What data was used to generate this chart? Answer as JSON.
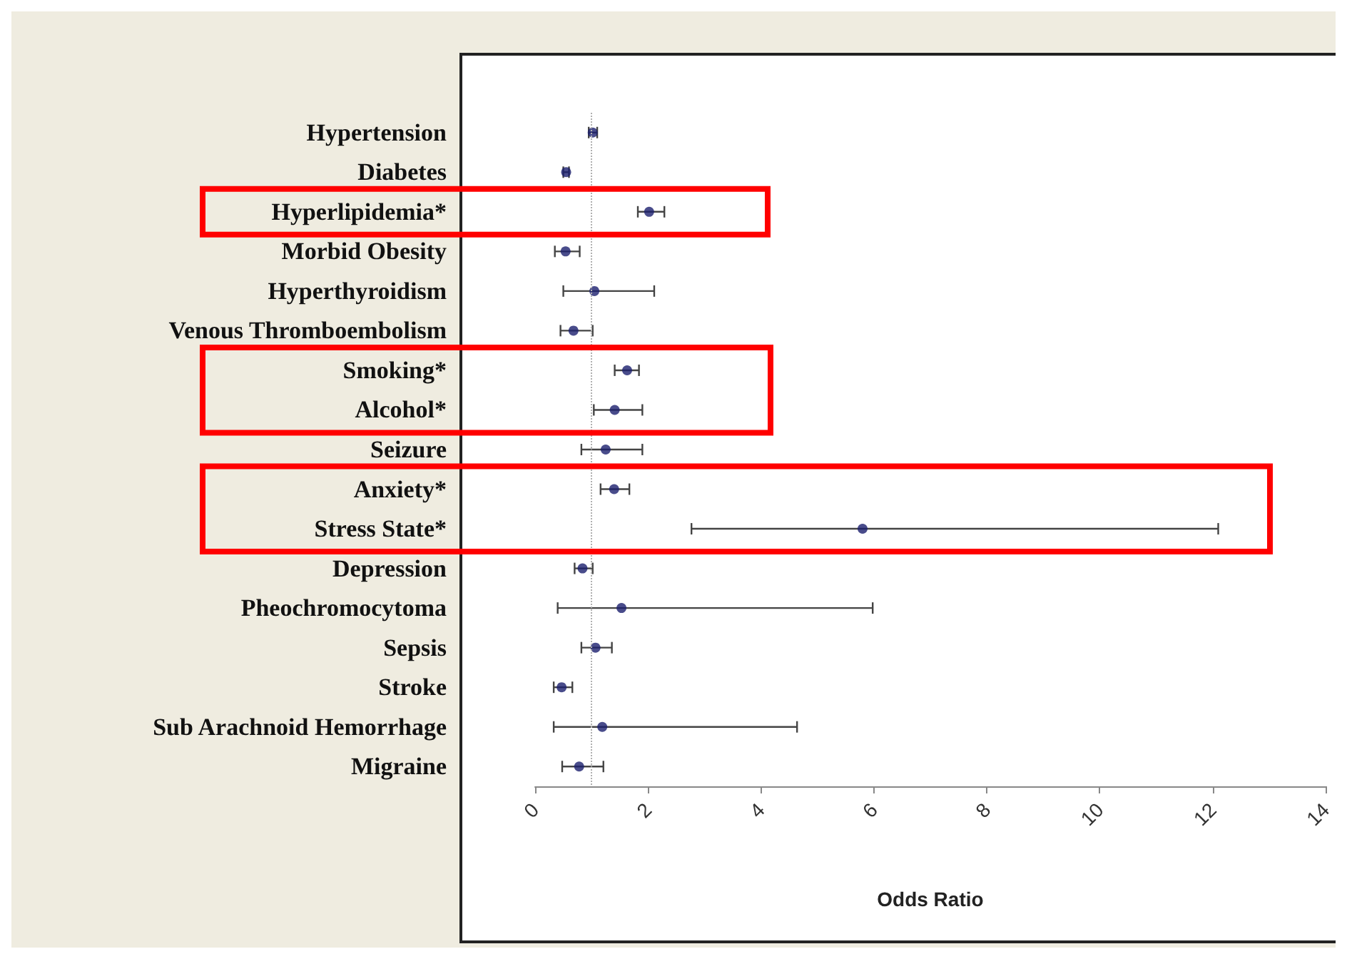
{
  "chart_data": {
    "type": "scatter",
    "orientation": "horizontal",
    "xlabel": "Odds Ratio",
    "categories": [
      "Hypertension",
      "Diabetes",
      "Hyperlipidemia*",
      "Morbid Obesity",
      "Hyperthyroidism",
      "Venous Thromboembolism",
      "Smoking*",
      "Alcohol*",
      "Seizure",
      "Anxiety*",
      "Stress State*",
      "Depression",
      "Pheochromocytoma",
      "Sepsis",
      "Stroke",
      "Sub Arachnoid Hemorrhage",
      "Migraine"
    ],
    "series": [
      {
        "color": "#1c1f6e",
        "values": [
          1.02,
          0.55,
          2.02,
          0.54,
          1.05,
          0.68,
          1.63,
          1.41,
          1.25,
          1.4,
          5.8,
          0.84,
          1.53,
          1.07,
          0.47,
          1.19,
          0.78
        ],
        "errors": [
          [
            0.95,
            1.1
          ],
          [
            0.5,
            0.6
          ],
          [
            1.82,
            2.29
          ],
          [
            0.35,
            0.79
          ],
          [
            0.5,
            2.11
          ],
          [
            0.45,
            1.02
          ],
          [
            1.41,
            1.84
          ],
          [
            1.04,
            1.9
          ],
          [
            0.82,
            1.9
          ],
          [
            1.16,
            1.67
          ],
          [
            2.77,
            12.1
          ],
          [
            0.7,
            1.02
          ],
          [
            0.4,
            5.98
          ],
          [
            0.82,
            1.36
          ],
          [
            0.33,
            0.66
          ],
          [
            0.33,
            4.64
          ],
          [
            0.48,
            1.21
          ]
        ]
      }
    ],
    "xlim": [
      0,
      14
    ],
    "xticks": [
      0,
      2,
      4,
      6,
      8,
      10,
      12,
      14
    ],
    "ref_lines": [
      {
        "axis": "x",
        "value": 1,
        "color": "#b0b0b0",
        "line_style": "dotted"
      }
    ],
    "grid": false,
    "marker": "circle"
  }
}
